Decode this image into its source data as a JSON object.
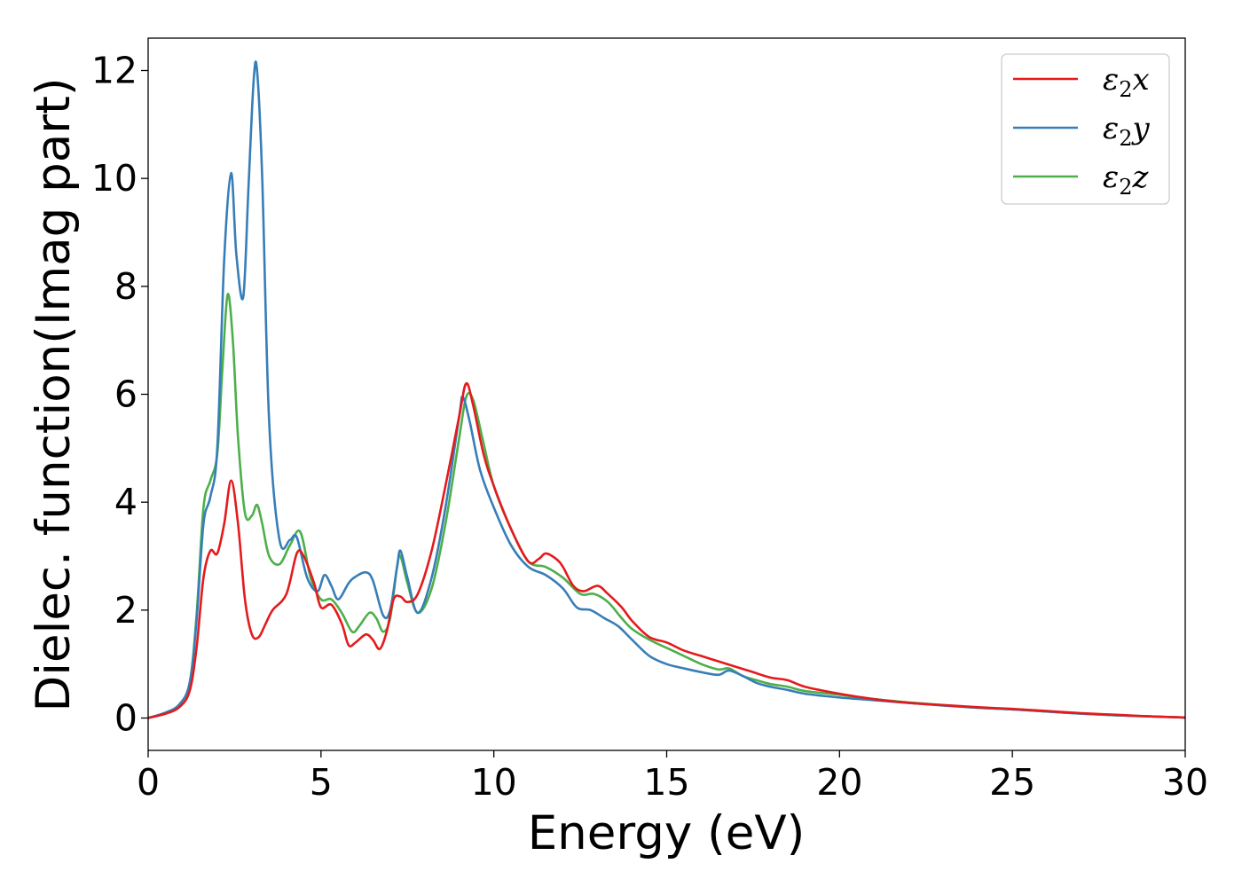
{
  "chart_data": {
    "type": "line",
    "title": "",
    "xlabel": "Energy (eV)",
    "ylabel": "Dielec. function(Imag part)",
    "xlim": [
      0,
      30
    ],
    "ylim": [
      -0.6,
      12.6
    ],
    "xticks": [
      0,
      5,
      10,
      15,
      20,
      25,
      30
    ],
    "yticks": [
      0,
      2,
      4,
      6,
      8,
      10,
      12
    ],
    "grid": false,
    "legend_position": "top-right",
    "series": [
      {
        "name": "ε₂x",
        "legend_base": "ε",
        "legend_sub": "2",
        "legend_axis": "x",
        "color": "#e41a1c",
        "x": [
          0,
          0.5,
          0.9,
          1.2,
          1.4,
          1.6,
          1.8,
          2.0,
          2.2,
          2.4,
          2.6,
          2.8,
          3.0,
          3.2,
          3.4,
          3.6,
          4.0,
          4.3,
          4.5,
          4.8,
          5.0,
          5.3,
          5.6,
          5.8,
          6.0,
          6.3,
          6.5,
          6.7,
          6.9,
          7.1,
          7.3,
          7.5,
          7.8,
          8.2,
          8.6,
          9.0,
          9.2,
          9.4,
          9.7,
          10.0,
          10.5,
          11.0,
          11.3,
          11.5,
          11.8,
          12.0,
          12.3,
          12.6,
          13.0,
          13.3,
          13.7,
          14.0,
          14.5,
          15.0,
          15.5,
          16.0,
          16.5,
          17.0,
          17.5,
          18.0,
          18.5,
          19.0,
          20.0,
          21.0,
          22.0,
          23.0,
          24.0,
          25.0,
          26.0,
          27.0,
          28.0,
          29.0,
          30.0
        ],
        "values": [
          0.0,
          0.08,
          0.2,
          0.5,
          1.3,
          2.6,
          3.1,
          3.05,
          3.6,
          4.4,
          3.6,
          2.2,
          1.55,
          1.5,
          1.75,
          2.0,
          2.3,
          3.05,
          3.0,
          2.5,
          2.05,
          2.1,
          1.75,
          1.35,
          1.4,
          1.55,
          1.45,
          1.28,
          1.6,
          2.2,
          2.25,
          2.15,
          2.3,
          3.1,
          4.3,
          5.6,
          6.2,
          5.8,
          4.9,
          4.3,
          3.5,
          2.9,
          2.95,
          3.05,
          2.95,
          2.8,
          2.45,
          2.35,
          2.45,
          2.3,
          2.05,
          1.8,
          1.5,
          1.4,
          1.25,
          1.15,
          1.05,
          0.95,
          0.85,
          0.75,
          0.7,
          0.58,
          0.45,
          0.35,
          0.28,
          0.24,
          0.2,
          0.17,
          0.13,
          0.09,
          0.06,
          0.03,
          0.01
        ]
      },
      {
        "name": "ε₂y",
        "legend_base": "ε",
        "legend_sub": "2",
        "legend_axis": "y",
        "color": "#377eb8",
        "x": [
          0,
          0.5,
          0.9,
          1.2,
          1.4,
          1.6,
          1.8,
          2.0,
          2.2,
          2.4,
          2.55,
          2.75,
          2.9,
          3.05,
          3.15,
          3.3,
          3.5,
          3.8,
          4.1,
          4.3,
          4.6,
          4.9,
          5.1,
          5.3,
          5.5,
          5.8,
          6.0,
          6.3,
          6.5,
          6.8,
          7.0,
          7.2,
          7.3,
          7.5,
          7.8,
          8.2,
          8.6,
          9.0,
          9.1,
          9.3,
          9.6,
          10.0,
          10.5,
          11.0,
          11.5,
          12.0,
          12.4,
          12.8,
          13.2,
          13.6,
          14.0,
          14.5,
          15.0,
          15.5,
          16.0,
          16.5,
          16.8,
          17.2,
          17.6,
          18.0,
          18.5,
          19.0,
          20.0,
          21.0,
          22.0,
          23.0,
          24.0,
          25.0,
          26.0,
          27.0,
          28.0,
          29.0,
          30.0
        ],
        "values": [
          0.0,
          0.1,
          0.25,
          0.65,
          1.8,
          3.6,
          4.1,
          5.0,
          8.5,
          10.1,
          8.6,
          7.8,
          9.8,
          11.8,
          12.0,
          10.0,
          5.5,
          3.3,
          3.3,
          3.35,
          2.6,
          2.35,
          2.65,
          2.45,
          2.2,
          2.5,
          2.62,
          2.7,
          2.55,
          1.9,
          2.0,
          2.8,
          3.1,
          2.6,
          1.95,
          2.6,
          3.9,
          5.6,
          5.95,
          5.5,
          4.6,
          3.9,
          3.2,
          2.8,
          2.65,
          2.4,
          2.05,
          2.0,
          1.85,
          1.7,
          1.45,
          1.15,
          1.0,
          0.92,
          0.85,
          0.8,
          0.88,
          0.78,
          0.65,
          0.58,
          0.52,
          0.45,
          0.38,
          0.33,
          0.28,
          0.23,
          0.19,
          0.16,
          0.12,
          0.08,
          0.05,
          0.03,
          0.01
        ]
      },
      {
        "name": "ε₂z",
        "legend_base": "ε",
        "legend_sub": "2",
        "legend_axis": "z",
        "color": "#4daf4a",
        "x": [
          0,
          0.5,
          0.9,
          1.2,
          1.4,
          1.6,
          1.8,
          2.0,
          2.15,
          2.3,
          2.45,
          2.6,
          2.8,
          3.0,
          3.15,
          3.3,
          3.5,
          3.8,
          4.1,
          4.4,
          4.7,
          5.0,
          5.3,
          5.6,
          5.9,
          6.1,
          6.4,
          6.6,
          6.8,
          7.0,
          7.2,
          7.3,
          7.5,
          7.8,
          8.2,
          8.6,
          9.0,
          9.2,
          9.4,
          9.7,
          10.0,
          10.5,
          11.0,
          11.5,
          12.0,
          12.5,
          12.9,
          13.3,
          13.7,
          14.0,
          14.5,
          15.0,
          15.5,
          16.0,
          16.5,
          16.8,
          17.2,
          17.6,
          18.0,
          18.5,
          19.0,
          20.0,
          21.0,
          22.0,
          23.0,
          24.0,
          25.0,
          26.0,
          27.0,
          28.0,
          29.0,
          30.0
        ],
        "values": [
          0.0,
          0.1,
          0.25,
          0.65,
          1.9,
          3.9,
          4.4,
          4.9,
          6.5,
          7.85,
          7.0,
          5.2,
          3.8,
          3.75,
          3.95,
          3.6,
          3.0,
          2.85,
          3.2,
          3.45,
          2.6,
          2.2,
          2.2,
          1.95,
          1.6,
          1.7,
          1.95,
          1.85,
          1.6,
          1.85,
          2.8,
          3.0,
          2.5,
          1.95,
          2.4,
          3.6,
          5.2,
          5.95,
          5.9,
          5.1,
          4.3,
          3.5,
          2.9,
          2.8,
          2.6,
          2.3,
          2.3,
          2.15,
          1.85,
          1.65,
          1.45,
          1.3,
          1.15,
          1.0,
          0.9,
          0.92,
          0.78,
          0.7,
          0.63,
          0.58,
          0.5,
          0.43,
          0.35,
          0.29,
          0.24,
          0.19,
          0.16,
          0.12,
          0.08,
          0.05,
          0.03,
          0.01
        ]
      }
    ]
  }
}
